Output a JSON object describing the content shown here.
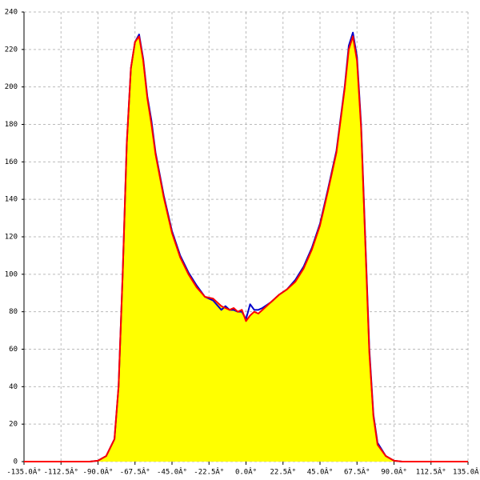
{
  "chart_data": {
    "type": "area_line",
    "x": [
      -135,
      -100,
      -95,
      -90,
      -85,
      -80,
      -77.5,
      -75,
      -72.5,
      -70,
      -67.5,
      -65,
      -62.5,
      -60,
      -57.5,
      -55,
      -50,
      -45,
      -40,
      -35,
      -30,
      -25,
      -20,
      -15,
      -12.5,
      -10,
      -7.5,
      -5,
      -2.5,
      0,
      2.5,
      5,
      7.5,
      10,
      15,
      20,
      25,
      30,
      35,
      40,
      45,
      50,
      55,
      60,
      62.5,
      65,
      67.5,
      70,
      72.5,
      75,
      77.5,
      80,
      85,
      90,
      95,
      135
    ],
    "series": [
      {
        "color": "#0000cc",
        "values": [
          0,
          0,
          0,
          0.5,
          3,
          12,
          40,
          100,
          170,
          210,
          224,
          228,
          215,
          195,
          182,
          165,
          142,
          123,
          110,
          101,
          94,
          88,
          86,
          81,
          83,
          81,
          81,
          80,
          80,
          76,
          84,
          81,
          81,
          82,
          85,
          89,
          92,
          97,
          104,
          114,
          127,
          146,
          166,
          200,
          222,
          229,
          216,
          180,
          120,
          60,
          25,
          10,
          3,
          0.5,
          0,
          0
        ]
      },
      {
        "color": "#ff0000",
        "values": [
          0,
          0,
          0,
          0.5,
          3,
          12,
          40,
          100,
          170,
          210,
          224,
          227,
          214,
          194,
          180,
          164,
          141,
          122,
          109,
          100,
          93,
          88,
          87,
          83,
          82,
          81,
          82,
          80,
          81,
          75,
          78,
          80,
          79,
          81,
          85,
          89,
          92,
          96,
          103,
          113,
          126,
          145,
          165,
          199,
          220,
          227,
          214,
          178,
          118,
          58,
          24,
          9,
          3,
          0.5,
          0,
          0
        ]
      }
    ],
    "fill_color": "#ffff00",
    "xlim": [
      -135,
      135
    ],
    "ylim": [
      0,
      240
    ],
    "xticks": [
      {
        "value": -135,
        "label": "-135.0Â°"
      },
      {
        "value": -112.5,
        "label": "-112.5Â°"
      },
      {
        "value": -90,
        "label": "-90.0Â°"
      },
      {
        "value": -67.5,
        "label": "-67.5Â°"
      },
      {
        "value": -45,
        "label": "-45.0Â°"
      },
      {
        "value": -22.5,
        "label": "-22.5Â°"
      },
      {
        "value": 0,
        "label": "0.0Â°"
      },
      {
        "value": 22.5,
        "label": "22.5Â°"
      },
      {
        "value": 45,
        "label": "45.0Â°"
      },
      {
        "value": 67.5,
        "label": "67.5Â°"
      },
      {
        "value": 90,
        "label": "90.0Â°"
      },
      {
        "value": 112.5,
        "label": "112.5Â°"
      },
      {
        "value": 135,
        "label": "135.0Â°"
      }
    ],
    "yticks": [
      0,
      20,
      40,
      60,
      80,
      100,
      120,
      140,
      160,
      180,
      200,
      220,
      240
    ],
    "grid": true
  }
}
